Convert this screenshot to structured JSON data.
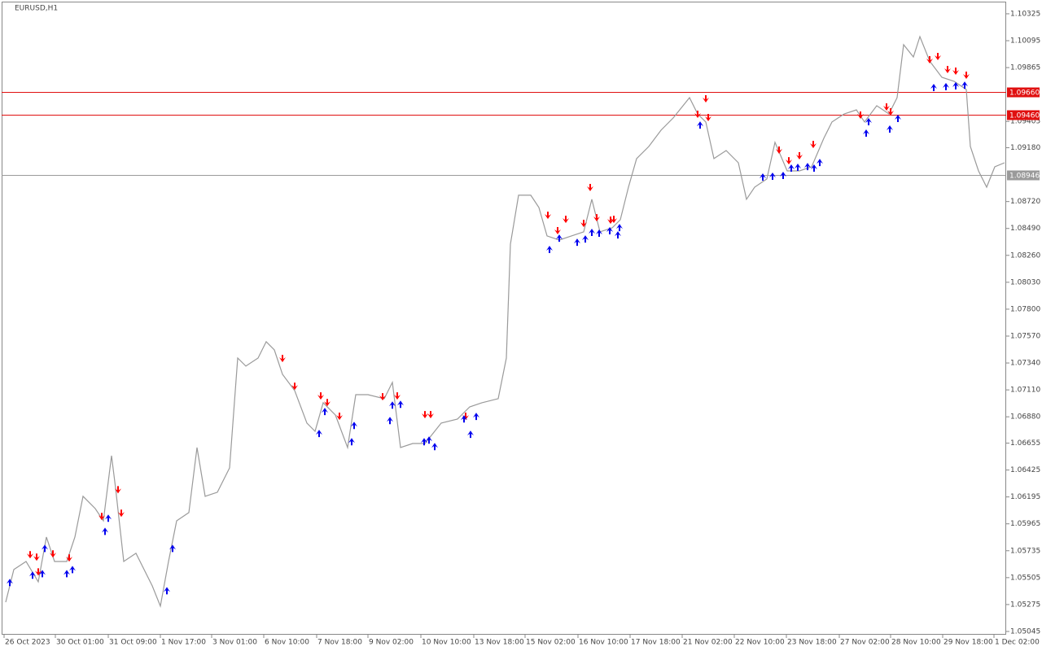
{
  "chart_data": {
    "type": "line",
    "title": "EURUSD,H1",
    "xlim": [
      0,
      617
    ],
    "ylim": [
      1.05017,
      1.10429
    ],
    "grid": false,
    "xticks": [
      {
        "value": 1.5,
        "label": "26 Oct 2023"
      },
      {
        "value": 33,
        "label": "30 Oct 01:00"
      },
      {
        "value": 65.5,
        "label": "31 Oct 09:00"
      },
      {
        "value": 97.5,
        "label": "1 Nov 17:00"
      },
      {
        "value": 129,
        "label": "3 Nov 01:00"
      },
      {
        "value": 161,
        "label": "6 Nov 10:00"
      },
      {
        "value": 193.5,
        "label": "7 Nov 18:00"
      },
      {
        "value": 225,
        "label": "9 Nov 02:00"
      },
      {
        "value": 257.5,
        "label": "10 Nov 10:00"
      },
      {
        "value": 290,
        "label": "13 Nov 18:00"
      },
      {
        "value": 321.5,
        "label": "15 Nov 02:00"
      },
      {
        "value": 354,
        "label": "16 Nov 10:00"
      },
      {
        "value": 386,
        "label": "17 Nov 18:00"
      },
      {
        "value": 418,
        "label": "21 Nov 02:00"
      },
      {
        "value": 450,
        "label": "22 Nov 10:00"
      },
      {
        "value": 482,
        "label": "23 Nov 18:00"
      },
      {
        "value": 514.5,
        "label": "27 Nov 02:00"
      },
      {
        "value": 546,
        "label": "28 Nov 10:00"
      },
      {
        "value": 578,
        "label": "29 Nov 18:00"
      },
      {
        "value": 609.5,
        "label": "1 Dec 02:00"
      }
    ],
    "yticks": [
      1.10325,
      1.10095,
      1.09865,
      1.09405,
      {
        "value": 1.0918,
        "label": "1.09180"
      },
      {
        "value": 1.0872,
        "label": "1.08720"
      },
      {
        "value": 1.0849,
        "label": "1.08490"
      },
      {
        "value": 1.0826,
        "label": "1.08260"
      },
      {
        "value": 1.0803,
        "label": "1.08030"
      },
      {
        "value": 1.078,
        "label": "1.07800"
      },
      {
        "value": 1.0757,
        "label": "1.07570"
      },
      {
        "value": 1.0734,
        "label": "1.07340"
      },
      {
        "value": 1.0711,
        "label": "1.07110"
      },
      {
        "value": 1.0688,
        "label": "1.06880"
      },
      1.06655,
      1.06425,
      1.06195,
      1.05965,
      1.05735,
      1.05505,
      1.05275,
      1.05045
    ],
    "levels": [
      {
        "value": 1.0966,
        "label": "1.09660",
        "color": "#e01010"
      },
      {
        "value": 1.0946,
        "label": "1.09460",
        "color": "#e01010"
      },
      {
        "value": 1.08946,
        "label": "1.08946",
        "color": "#9a9a9a"
      }
    ],
    "series": [
      {
        "marker": "line",
        "color": "#9a9a9a",
        "x": [
          2.5,
          7.5,
          15,
          22.5,
          27.5,
          32.5,
          40,
          45,
          50,
          57.5,
          62.5,
          67.5,
          70,
          75,
          82.5,
          92.5,
          97.5,
          102.5,
          107.5,
          115,
          120,
          125,
          132.5,
          140,
          145,
          150,
          157.5,
          162.5,
          167.5,
          172.5,
          180,
          187.5,
          192.5,
          197.5,
          205,
          212.5,
          217.5,
          225,
          235,
          240,
          245,
          252.5,
          260,
          270,
          280,
          287.5,
          295,
          305,
          310,
          312.5,
          317.5,
          325,
          330,
          335,
          342.5,
          350,
          357.5,
          362.5,
          367.5,
          375,
          380,
          385,
          390,
          397.5,
          405,
          412.5,
          422.5,
          427.5,
          432.5,
          437.5,
          445,
          452.5,
          457.5,
          462.5,
          470,
          475,
          482.5,
          490,
          497.5,
          505,
          510,
          517.5,
          525,
          530,
          537.5,
          545,
          550,
          554,
          560,
          564,
          570,
          577.5,
          585,
          592.5,
          595,
          600,
          605,
          610,
          616
        ],
        "values": [
          1.05295,
          1.05574,
          1.05643,
          1.05469,
          1.05852,
          1.05643,
          1.05643,
          1.05852,
          1.062,
          1.06095,
          1.05991,
          1.06548,
          1.06269,
          1.05643,
          1.05713,
          1.05435,
          1.05261,
          1.05643,
          1.05991,
          1.06061,
          1.06617,
          1.062,
          1.06235,
          1.06443,
          1.07382,
          1.07313,
          1.07382,
          1.07522,
          1.07452,
          1.07243,
          1.07104,
          1.06826,
          1.06756,
          1.07,
          1.06895,
          1.06617,
          1.07069,
          1.07069,
          1.07035,
          1.07174,
          1.06617,
          1.06652,
          1.06652,
          1.06826,
          1.06861,
          1.06965,
          1.07,
          1.07035,
          1.07382,
          1.08356,
          1.08774,
          1.08774,
          1.08669,
          1.08426,
          1.08391,
          1.08426,
          1.08461,
          1.08739,
          1.08461,
          1.08495,
          1.08565,
          1.08843,
          1.09087,
          1.09191,
          1.0933,
          1.09435,
          1.09608,
          1.09469,
          1.094,
          1.09087,
          1.09156,
          1.09052,
          1.08739,
          1.08843,
          1.08913,
          1.09226,
          1.08982,
          1.08982,
          1.09017,
          1.09261,
          1.094,
          1.09469,
          1.09504,
          1.094,
          1.09539,
          1.09469,
          1.09608,
          1.10061,
          1.09956,
          1.1013,
          1.09921,
          1.09782,
          1.09748,
          1.09678,
          1.09191,
          1.08982,
          1.08843,
          1.09017,
          1.09052
        ]
      },
      {
        "marker": "arrow-down",
        "color": "#ff0000",
        "x": [
          17.5,
          21.5,
          22.5,
          31.5,
          41.5,
          61.5,
          71.5,
          73.5,
          172.5,
          180,
          196,
          200,
          207.5,
          234,
          243,
          260,
          263.5,
          285,
          335.5,
          341.5,
          346.5,
          357.5,
          365.5,
          374,
          376,
          361.5,
          427.5,
          432.5,
          434,
          477.5,
          483.5,
          490,
          498.5,
          527.5,
          543.5,
          546,
          570,
          575,
          581,
          586,
          592.5
        ],
        "values": [
          1.05697,
          1.05676,
          1.0555,
          1.05704,
          1.05669,
          1.06024,
          1.06253,
          1.06052,
          1.07374,
          1.07137,
          1.07054,
          1.06998,
          1.0688,
          1.07047,
          1.07054,
          1.06894,
          1.06894,
          1.0688,
          1.08599,
          1.08467,
          1.08564,
          1.08529,
          1.08578,
          1.08557,
          1.08564,
          1.08836,
          1.09462,
          1.09594,
          1.09434,
          1.09156,
          1.09065,
          1.09107,
          1.09204,
          1.09455,
          1.09525,
          1.09483,
          1.09928,
          1.09956,
          1.09845,
          1.09831,
          1.09796
        ]
      },
      {
        "marker": "arrow-up",
        "color": "#0000ee",
        "x": [
          5,
          19,
          25,
          26.5,
          40,
          43.5,
          63.5,
          65.5,
          101.5,
          105,
          195,
          198.5,
          215,
          216.5,
          238.5,
          240,
          245,
          259.5,
          262.5,
          266,
          284,
          288,
          291.5,
          336.5,
          342.5,
          353.5,
          358.5,
          362.5,
          367,
          373.5,
          378.5,
          379.5,
          429,
          467.5,
          473.5,
          480,
          485,
          489,
          495,
          499,
          502.5,
          531,
          532.5,
          545.5,
          550.5,
          572.5,
          580,
          586,
          591.5
        ],
        "values": [
          1.05467,
          1.0553,
          1.05543,
          1.05759,
          1.05543,
          1.05578,
          1.05905,
          1.06017,
          1.05397,
          1.05759,
          1.06741,
          1.06929,
          1.06671,
          1.0681,
          1.06852,
          1.06984,
          1.06991,
          1.06671,
          1.06685,
          1.06629,
          1.06866,
          1.06734,
          1.06887,
          1.08314,
          1.08411,
          1.08376,
          1.08404,
          1.0846,
          1.08453,
          1.08474,
          1.08439,
          1.08501,
          1.09378,
          1.08933,
          1.0894,
          1.08947,
          1.0901,
          1.09017,
          1.09023,
          1.0901,
          1.09058,
          1.09309,
          1.09406,
          1.09344,
          1.09434,
          1.09699,
          1.09706,
          1.09713,
          1.09719
        ]
      }
    ]
  }
}
